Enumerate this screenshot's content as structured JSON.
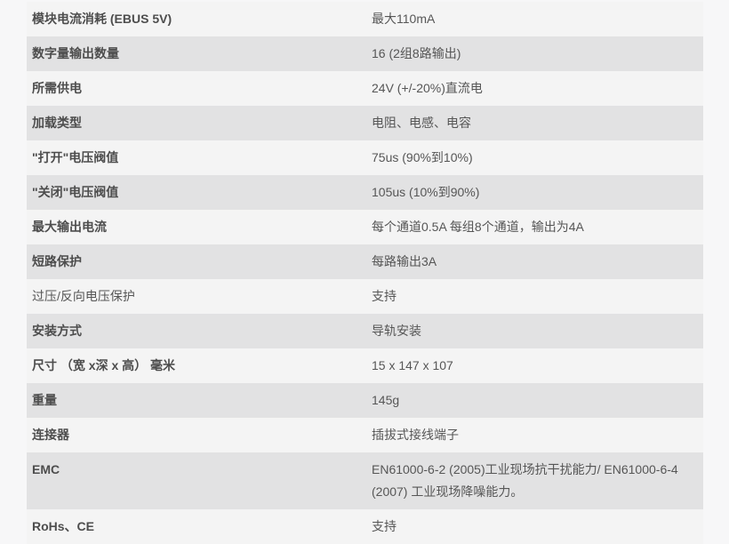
{
  "colors": {
    "page_bg": "#f7f7f8",
    "row_light": "#f4f4f4",
    "row_dark": "#e2e2e3",
    "label_text": "#4d4d4d",
    "value_text": "#565656"
  },
  "spec_table": {
    "rows": [
      {
        "label": "模块电流消耗 (EBUS 5V)",
        "value": "最大110mA",
        "label_bold": true,
        "tall": false
      },
      {
        "label": "数字量输出数量",
        "value": "16 (2组8路输出)",
        "label_bold": true,
        "tall": false
      },
      {
        "label": "所需供电",
        "value": "24V (+/-20%)直流电",
        "label_bold": true,
        "tall": false
      },
      {
        "label": "加载类型",
        "value": "电阻、电感、电容",
        "label_bold": true,
        "tall": false
      },
      {
        "label": "\"打开\"电压阀值",
        "value": "75us (90%到10%)",
        "label_bold": true,
        "tall": false
      },
      {
        "label": "\"关闭\"电压阀值",
        "value": "105us (10%到90%)",
        "label_bold": true,
        "tall": false
      },
      {
        "label": "最大输出电流",
        "value": "每个通道0.5A 每组8个通道，输出为4A",
        "label_bold": true,
        "tall": false
      },
      {
        "label": "短路保护",
        "value": "每路输出3A",
        "label_bold": true,
        "tall": false
      },
      {
        "label": "过压/反向电压保护",
        "value": "支持",
        "label_bold": false,
        "tall": false
      },
      {
        "label": "安装方式",
        "value": "导轨安装",
        "label_bold": true,
        "tall": false
      },
      {
        "label": "尺寸 （宽 x深 x 高） 毫米",
        "value": "15 x 147 x 107",
        "label_bold": true,
        "tall": false
      },
      {
        "label": "重量",
        "value": "145g",
        "label_bold": true,
        "tall": false
      },
      {
        "label": "连接器",
        "value": "插拔式接线端子",
        "label_bold": true,
        "tall": false
      },
      {
        "label": "EMC",
        "value": "EN61000-6-2 (2005)工业现场抗干扰能力/ EN61000-6-4 (2007) 工业现场降噪能力。",
        "label_bold": true,
        "tall": true
      },
      {
        "label": "RoHs、CE",
        "value": "支持",
        "label_bold": true,
        "tall": false
      }
    ]
  }
}
